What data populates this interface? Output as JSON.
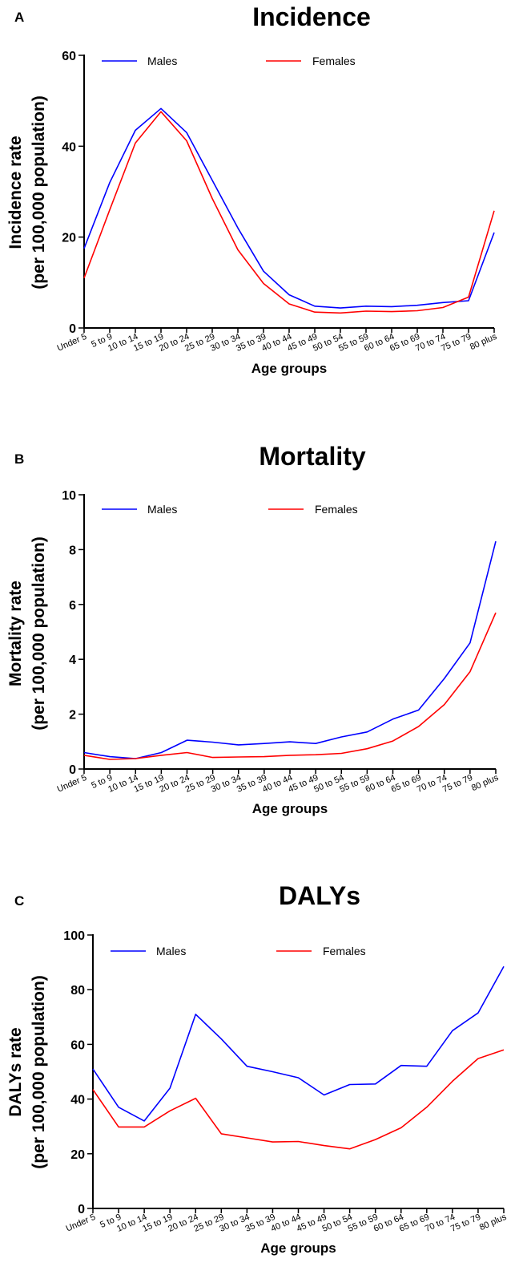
{
  "chart_data": [
    {
      "type": "line",
      "panel_letter": "A",
      "title": "Incidence",
      "ylabel": [
        "Incidence rate",
        "(per 100,000 population)"
      ],
      "xlabel": "Age groups",
      "categories": [
        "Under 5",
        "5 to 9",
        "10 to 14",
        "15 to 19",
        "20 to 24",
        "25 to 29",
        "30 to 34",
        "35 to 39",
        "40 to 44",
        "45 to 49",
        "50 to 54",
        "55 to 59",
        "60 to 64",
        "65 to 69",
        "70 to 74",
        "75 to 79",
        "80 plus"
      ],
      "ylim": [
        0,
        60
      ],
      "yticks": [
        0,
        20,
        40,
        60
      ],
      "grid": false,
      "legend_position": "top",
      "series": [
        {
          "name": "Males",
          "color": "#0000ff",
          "values": [
            17.5,
            32,
            43.5,
            48.3,
            43,
            32.5,
            22,
            12.5,
            7.3,
            4.8,
            4.4,
            4.8,
            4.7,
            5.0,
            5.6,
            6.0,
            21
          ]
        },
        {
          "name": "Females",
          "color": "#ff0000",
          "values": [
            11,
            26,
            40.7,
            47.6,
            41.2,
            28.5,
            17.2,
            9.8,
            5.3,
            3.5,
            3.3,
            3.7,
            3.6,
            3.8,
            4.5,
            6.8,
            25.8
          ]
        }
      ]
    },
    {
      "type": "line",
      "panel_letter": "B",
      "title": "Mortality",
      "ylabel": [
        "Mortality rate",
        "(per 100,000 population)"
      ],
      "xlabel": "Age groups",
      "categories": [
        "Under 5",
        "5 to 9",
        "10 to 14",
        "15 to 19",
        "20 to 24",
        "25 to 29",
        "30 to 34",
        "35 to 39",
        "40 to 44",
        "45 to 49",
        "50 to 54",
        "55 to 59",
        "60 to 64",
        "65 to 69",
        "70 to 74",
        "75 to 79",
        "80 plus"
      ],
      "ylim": [
        0,
        10
      ],
      "yticks": [
        0,
        2,
        4,
        6,
        8,
        10
      ],
      "grid": false,
      "legend_position": "top",
      "series": [
        {
          "name": "Males",
          "color": "#0000ff",
          "values": [
            0.6,
            0.45,
            0.38,
            0.6,
            1.05,
            0.98,
            0.88,
            0.93,
            0.99,
            0.93,
            1.17,
            1.35,
            1.82,
            2.15,
            3.3,
            4.6,
            8.3
          ]
        },
        {
          "name": "Females",
          "color": "#ff0000",
          "values": [
            0.5,
            0.35,
            0.38,
            0.5,
            0.6,
            0.42,
            0.44,
            0.45,
            0.5,
            0.52,
            0.57,
            0.74,
            1.02,
            1.55,
            2.35,
            3.55,
            5.7
          ]
        }
      ]
    },
    {
      "type": "line",
      "panel_letter": "C",
      "title": "DALYs",
      "ylabel": [
        "DALYs rate",
        "(per 100,000 population)"
      ],
      "xlabel": "Age groups",
      "categories": [
        "Under 5",
        "5 to 9",
        "10 to 14",
        "15 to 19",
        "20 to 24",
        "25 to 29",
        "30 to 34",
        "35 to 39",
        "40 to 44",
        "45 to 49",
        "50 to 54",
        "55 to 59",
        "60 to 64",
        "65 to 69",
        "70 to 74",
        "75 to 79",
        "80 plus"
      ],
      "ylim": [
        0,
        100
      ],
      "yticks": [
        0,
        20,
        40,
        60,
        80,
        100
      ],
      "grid": false,
      "legend_position": "top",
      "series": [
        {
          "name": "Males",
          "color": "#0000ff",
          "values": [
            51,
            37,
            32,
            44,
            71,
            62,
            52,
            50,
            47.8,
            41.5,
            45.3,
            45.5,
            52.3,
            52,
            65,
            71.5,
            88.5
          ]
        },
        {
          "name": "Females",
          "color": "#ff0000",
          "values": [
            43.5,
            29.8,
            29.8,
            35.7,
            40.3,
            27.3,
            25.8,
            24.3,
            24.5,
            23,
            21.8,
            25.2,
            29.5,
            37,
            46.5,
            54.8,
            58
          ]
        }
      ]
    }
  ]
}
